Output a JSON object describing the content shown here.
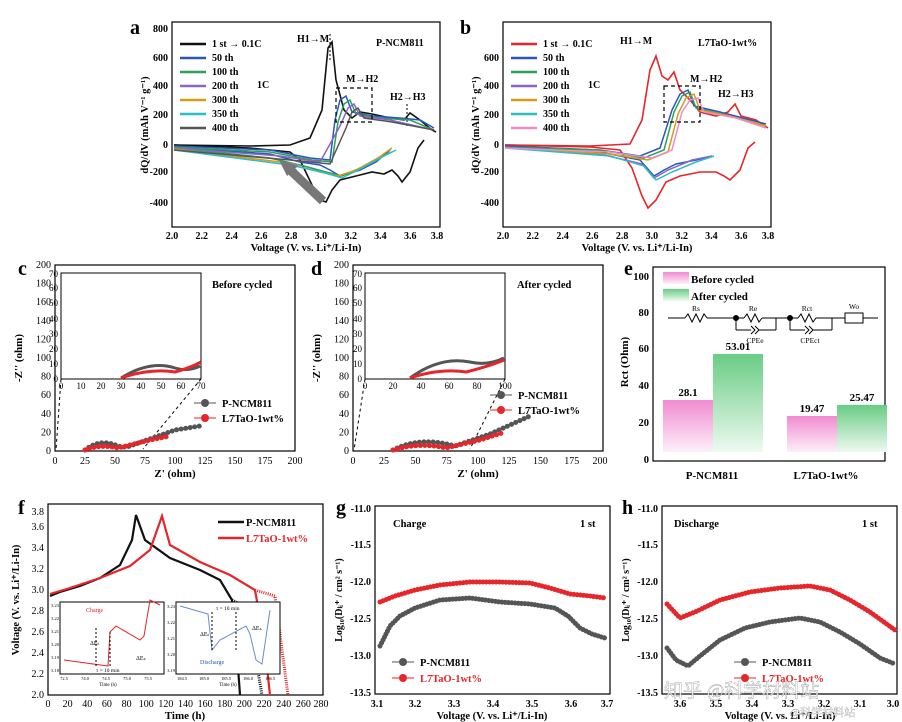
{
  "panels": {
    "a": {
      "letter": "a",
      "title": "P-NCM811",
      "rate": "1C",
      "xlabel": "Voltage (V. vs. Li⁺/Li-In)",
      "ylabel": "dQ/dV (mAh V⁻¹ g⁻¹)",
      "xticks": [
        "2.0",
        "2.2",
        "2.4",
        "2.6",
        "2.8",
        "3.0",
        "3.2",
        "3.4",
        "3.6",
        "3.8"
      ],
      "yticks": [
        "-400",
        "-200",
        "0",
        "200",
        "400",
        "600",
        "800"
      ],
      "legend": [
        "1 st → 0.1C",
        "50 th",
        "100 th",
        "200 th",
        "300 th",
        "350 th",
        "400 th"
      ],
      "ann": {
        "h1m": "H1→M",
        "mh2": "M→H2",
        "h2h3": "H2→H3"
      }
    },
    "b": {
      "letter": "b",
      "title": "L7TaO-1wt%",
      "rate": "1C",
      "xlabel": "Voltage (V. vs. Li⁺/Li-In)",
      "ylabel": "dQ/dV (mAh V⁻¹ g⁻¹)",
      "xticks": [
        "2.0",
        "2.2",
        "2.4",
        "2.6",
        "2.8",
        "3.0",
        "3.2",
        "3.4",
        "3.6",
        "3.8"
      ],
      "yticks": [
        "-400",
        "-200",
        "0",
        "200",
        "400",
        "600"
      ],
      "legend": [
        "1 st → 0.1C",
        "50 th",
        "100 th",
        "200 th",
        "300 th",
        "350 th",
        "400 th"
      ],
      "ann": {
        "h1m": "H1→M",
        "mh2": "M→H2",
        "h2h3": "H2→H3"
      }
    },
    "c": {
      "letter": "c",
      "title": "Before cycled",
      "xlabel": "Z' (ohm)",
      "ylabel": "-Z'' (ohm)",
      "xticks": [
        "0",
        "25",
        "50",
        "75",
        "100",
        "125",
        "150",
        "175",
        "200"
      ],
      "yticks": [
        "0",
        "20",
        "40",
        "60",
        "80",
        "100",
        "120",
        "140",
        "160",
        "180",
        "200"
      ],
      "inset_xticks": [
        "0",
        "10",
        "20",
        "30",
        "40",
        "50",
        "60",
        "70"
      ],
      "inset_yticks": [
        "0",
        "10",
        "20",
        "30",
        "40",
        "50",
        "60",
        "70"
      ],
      "legend": [
        "P-NCM811",
        "L7TaO-1wt%"
      ]
    },
    "d": {
      "letter": "d",
      "title": "After cycled",
      "xlabel": "Z' (ohm)",
      "ylabel": "-Z'' (ohm)",
      "xticks": [
        "0",
        "25",
        "50",
        "75",
        "100",
        "125",
        "150",
        "175",
        "200"
      ],
      "yticks": [
        "0",
        "20",
        "40",
        "60",
        "80",
        "100",
        "120",
        "140",
        "160",
        "180",
        "200"
      ],
      "inset_xticks": [
        "0",
        "20",
        "40",
        "60",
        "80",
        "100"
      ],
      "inset_yticks": [
        "0",
        "10",
        "20",
        "30",
        "40",
        "50",
        "60",
        "70"
      ],
      "legend": [
        "P-NCM811",
        "L7TaO-1wt%"
      ]
    },
    "e": {
      "letter": "e",
      "ylabel": "Rct (Ohm)",
      "yticks": [
        "0",
        "20",
        "40",
        "60",
        "80",
        "100"
      ],
      "legend": [
        "Before cycled",
        "After cycled"
      ],
      "circuit": {
        "rs": "Rs",
        "re": "Re",
        "cpee": "CPEe",
        "rct": "Rct",
        "cpect": "CPEct",
        "wo": "Wo"
      }
    },
    "f": {
      "letter": "f",
      "xlabel": "Time (h)",
      "ylabel": "Voltage (V. vs. Li⁺/Li-In)",
      "xticks": [
        "0",
        "20",
        "40",
        "60",
        "80",
        "100",
        "120",
        "140",
        "160",
        "180",
        "200",
        "220",
        "240",
        "260",
        "280"
      ],
      "yticks": [
        "2.0",
        "2.2",
        "2.4",
        "2.6",
        "2.8",
        "3.0",
        "3.2",
        "3.4",
        "3.6",
        "3.8"
      ],
      "legend": [
        "P-NCM811",
        "L7TaO-1wt%"
      ],
      "inset1": {
        "label": "Charge",
        "ylabel": "Voltage (V. vs. Li⁺/Li-In)",
        "xlabel": "Time (h)",
        "tau": "τ = 10 min",
        "de": "ΔEₜ",
        "ds": "ΔEₛ",
        "xticks": [
          "72.5",
          "74.0",
          "74.5",
          "75.0",
          "75.5"
        ],
        "yticks": [
          "3.18",
          "3.19",
          "3.20",
          "3.21",
          "3.22",
          "3.23"
        ]
      },
      "inset2": {
        "label": "Discharge",
        "ylabel": "Voltage (V. vs. Li⁺/Li-In)",
        "xlabel": "Time (h)",
        "tau": "τ = 10 min",
        "de": "ΔEₜ",
        "ds": "ΔEₛ",
        "xticks": [
          "184.5",
          "185.0",
          "185.5",
          "186.0",
          "186.5"
        ],
        "yticks": [
          "3.19",
          "3.20",
          "3.21",
          "3.22",
          "3.23"
        ]
      }
    },
    "g": {
      "letter": "g",
      "title": "Charge",
      "cycle": "1 st",
      "xlabel": "Voltage (V. vs. Li⁺/Li-In)",
      "ylabel": "Log₁₀(Dₗᵢ⁺ / cm² s⁻¹)",
      "xticks": [
        "3.1",
        "3.2",
        "3.3",
        "3.4",
        "3.5",
        "3.6",
        "3.7"
      ],
      "yticks": [
        "-11.0",
        "-11.5",
        "-12.0",
        "-12.5",
        "-13.0",
        "-13.5"
      ],
      "legend": [
        "P-NCM811",
        "L7TaO-1wt%"
      ]
    },
    "h": {
      "letter": "h",
      "title": "Discharge",
      "cycle": "1 st",
      "xlabel": "Voltage (V. vs. Li⁺/Li-In)",
      "ylabel": "Log₁₀(Dₗᵢ⁺ / cm² s⁻¹)",
      "xticks": [
        "3.6",
        "3.5",
        "3.4",
        "3.3",
        "3.2",
        "3.1",
        "3.0"
      ],
      "yticks": [
        "-11.0",
        "-11.5",
        "-12.0",
        "-12.5",
        "-13.0",
        "-13.5"
      ],
      "legend": [
        "P-NCM811",
        "L7TaO-1wt%"
      ]
    }
  },
  "watermark": {
    "line1": "知乎 @科学材料站",
    "line2": "@科学材料站"
  },
  "colors": {
    "black": "#111111",
    "red": "#e5262b",
    "blue": "#2b57b8",
    "green": "#2aa05a",
    "purple": "#8c63c9",
    "orange": "#d79a1d",
    "cyan": "#2cbcc6",
    "pink": "#ef8bc8",
    "gray": "#555555"
  },
  "chart_data": [
    {
      "panel": "e",
      "type": "bar",
      "categories": [
        "P-NCM811",
        "L7TaO-1wt%"
      ],
      "series": [
        {
          "name": "Before cycled",
          "values": [
            28.1,
            19.47
          ]
        },
        {
          "name": "After cycled",
          "values": [
            53.01,
            25.47
          ]
        }
      ],
      "ylabel": "Rct (Ohm)",
      "ylim": [
        0,
        100
      ]
    }
  ]
}
